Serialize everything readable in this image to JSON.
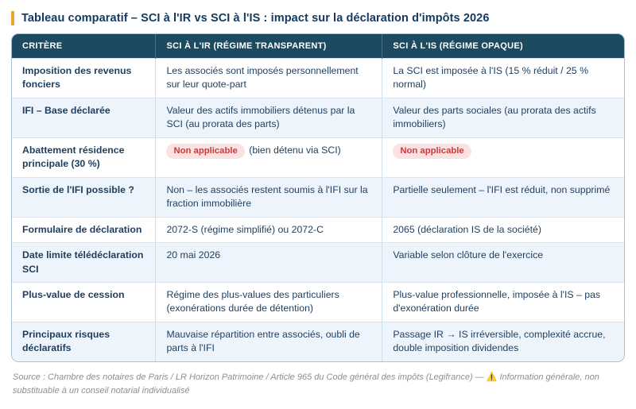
{
  "page": {
    "title": "Tableau comparatif – SCI à l'IR vs SCI à l'IS : impact sur la déclaration d'impôts 2026"
  },
  "table": {
    "headers": [
      "CRITÈRE",
      "SCI À L'IR (RÉGIME TRANSPARENT)",
      "SCI À L'IS (RÉGIME OPAQUE)"
    ],
    "rows": [
      {
        "critere": "Imposition des revenus fonciers",
        "ir": {
          "text": "Les associés sont imposés personnellement sur leur quote-part"
        },
        "is": {
          "text": "La SCI est imposée à l'IS (15 % réduit / 25 % normal)"
        }
      },
      {
        "critere": "IFI – Base déclarée",
        "ir": {
          "text": "Valeur des actifs immobiliers détenus par la SCI (au prorata des parts)"
        },
        "is": {
          "text": "Valeur des parts sociales (au prorata des actifs immobiliers)"
        }
      },
      {
        "critere": "Abattement résidence principale (30 %)",
        "ir": {
          "badge": "Non applicable",
          "text": "(bien détenu via SCI)"
        },
        "is": {
          "badge": "Non applicable",
          "text": ""
        }
      },
      {
        "critere": "Sortie de l'IFI possible ?",
        "ir": {
          "text": "Non – les associés restent soumis à l'IFI sur la fraction immobilière"
        },
        "is": {
          "text": "Partielle seulement – l'IFI est réduit, non supprimé"
        }
      },
      {
        "critere": "Formulaire de déclaration",
        "ir": {
          "text": "2072-S (régime simplifié) ou 2072-C"
        },
        "is": {
          "text": "2065 (déclaration IS de la société)"
        }
      },
      {
        "critere": "Date limite télédéclaration SCI",
        "ir": {
          "text": "20 mai 2026"
        },
        "is": {
          "text": "Variable selon clôture de l'exercice"
        }
      },
      {
        "critere": "Plus-value de cession",
        "ir": {
          "text": "Régime des plus-values des particuliers (exonérations durée de détention)"
        },
        "is": {
          "text": "Plus-value professionnelle, imposée à l'IS – pas d'exonération durée"
        }
      },
      {
        "critere": "Principaux risques déclaratifs",
        "ir": {
          "text": "Mauvaise répartition entre associés, oubli de parts à l'IFI"
        },
        "is": {
          "text": "Passage IR → IS irréversible, complexité accrue, double imposition dividendes"
        }
      }
    ]
  },
  "footer": {
    "source": "Source : Chambre des notaires de Paris / LR Horizon Patrimoine / Article 965 du Code général des impôts (Legifrance) — ",
    "warning_icon": "⚠️",
    "note": " Information générale, non substituable à un conseil notarial individualisé"
  },
  "colors": {
    "accent_orange": "#eda32e",
    "title_text": "#14395f",
    "header_bg": "#1b4a61",
    "header_text": "#ffffff",
    "cell_text": "#1d3e5e",
    "row_alt_bg": "#eef4fb",
    "badge_bg": "#fbe1e1",
    "badge_text": "#cc3a3a",
    "table_border": "#a9c3d6",
    "footer_text": "#8b8f94"
  }
}
